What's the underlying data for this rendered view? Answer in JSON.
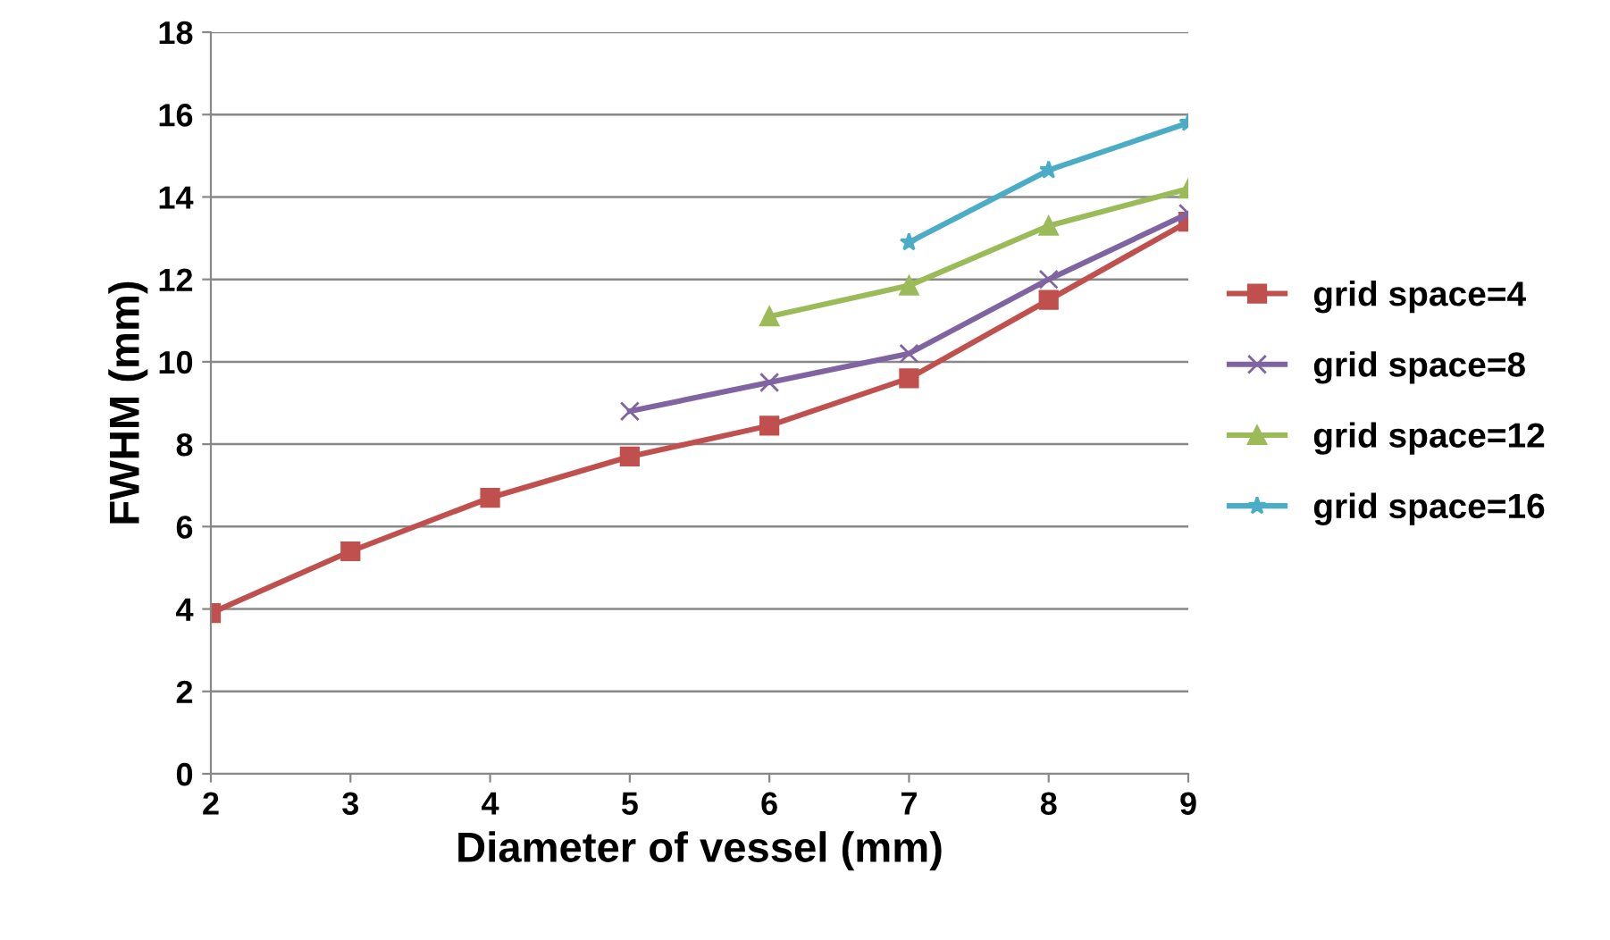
{
  "chart_data": {
    "type": "line",
    "xlabel": "Diameter of vessel (mm)",
    "ylabel": "FWHM (mm)",
    "xlim": [
      2,
      9
    ],
    "xticks": [
      2,
      3,
      4,
      5,
      6,
      7,
      8,
      9
    ],
    "ylim": [
      0,
      18
    ],
    "yticks": [
      0,
      2,
      4,
      6,
      8,
      10,
      12,
      14,
      16,
      18
    ],
    "grid": "y",
    "legend": "right",
    "series": [
      {
        "name": "grid space=4",
        "color": "#c0504d",
        "marker": "square",
        "x": [
          2,
          3,
          4,
          5,
          6,
          7,
          8,
          9
        ],
        "values": [
          3.9,
          5.4,
          6.7,
          7.7,
          8.45,
          9.6,
          11.5,
          13.4
        ]
      },
      {
        "name": "grid space=8",
        "color": "#8064a2",
        "marker": "cross",
        "x": [
          5,
          6,
          7,
          8,
          9
        ],
        "values": [
          8.8,
          9.5,
          10.2,
          12.0,
          13.6
        ]
      },
      {
        "name": "grid space=12",
        "color": "#9bbb59",
        "marker": "triangle",
        "x": [
          6,
          7,
          8,
          9
        ],
        "values": [
          11.1,
          11.85,
          13.3,
          14.2
        ]
      },
      {
        "name": "grid space=16",
        "color": "#4bacc6",
        "marker": "star",
        "x": [
          7,
          8,
          9
        ],
        "values": [
          12.9,
          14.65,
          15.8
        ]
      }
    ]
  }
}
